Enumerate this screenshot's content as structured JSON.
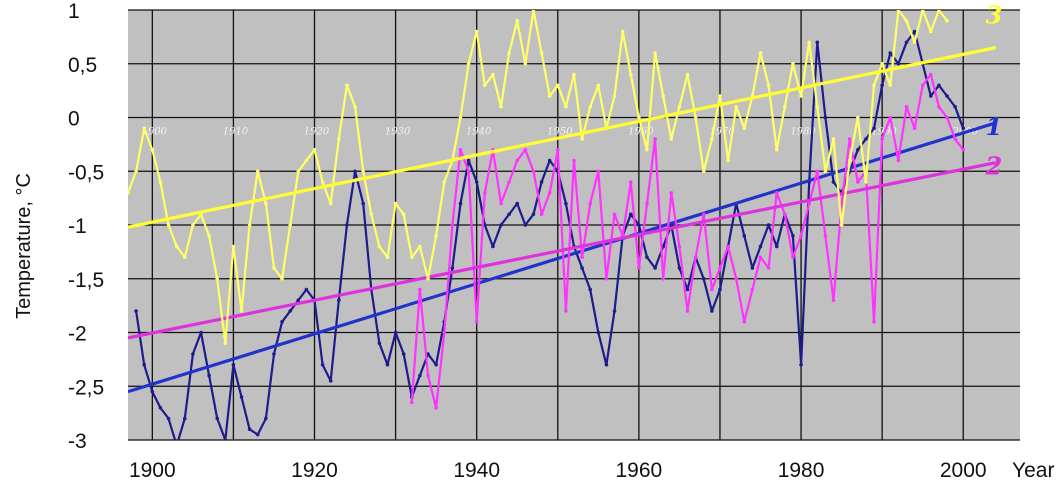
{
  "chart_data": {
    "type": "line",
    "title": "",
    "xlabel": "Year",
    "ylabel": "Temperature, °C",
    "xlim": [
      1897,
      2007
    ],
    "ylim": [
      -3,
      1
    ],
    "x_ticks": [
      "1900",
      "1920",
      "1940",
      "1960",
      "1980",
      "2000"
    ],
    "y_ticks": [
      {
        "value": 1,
        "label": "1"
      },
      {
        "value": 0.5,
        "label": "0,5"
      },
      {
        "value": 0,
        "label": "0"
      },
      {
        "value": -0.5,
        "label": "-0,5"
      },
      {
        "value": -1,
        "label": "-1"
      },
      {
        "value": -1.5,
        "label": "-1,5"
      },
      {
        "value": -2,
        "label": "-2"
      },
      {
        "value": -2.5,
        "label": "-2,5"
      },
      {
        "value": -3,
        "label": "-3"
      }
    ],
    "inner_ticks": [
      "1900",
      "1910",
      "1920",
      "1930",
      "1940",
      "1950",
      "1960",
      "1970",
      "1980",
      "1990",
      "2000"
    ],
    "grid": true,
    "background_color": "#c0c0c0",
    "series": [
      {
        "label": "1",
        "color": "#1c1c8c",
        "trend_color": "#2233cc",
        "trend": [
          [
            1897,
            -2.55
          ],
          [
            2004,
            -0.05
          ]
        ],
        "points": [
          [
            1898,
            -1.8
          ],
          [
            1899,
            -2.3
          ],
          [
            1900,
            -2.55
          ],
          [
            1901,
            -2.7
          ],
          [
            1902,
            -2.8
          ],
          [
            1903,
            -3.05
          ],
          [
            1904,
            -2.8
          ],
          [
            1905,
            -2.2
          ],
          [
            1906,
            -2.0
          ],
          [
            1907,
            -2.4
          ],
          [
            1908,
            -2.8
          ],
          [
            1909,
            -3.0
          ],
          [
            1910,
            -2.3
          ],
          [
            1911,
            -2.6
          ],
          [
            1912,
            -2.9
          ],
          [
            1913,
            -2.95
          ],
          [
            1914,
            -2.8
          ],
          [
            1915,
            -2.2
          ],
          [
            1916,
            -1.9
          ],
          [
            1917,
            -1.8
          ],
          [
            1918,
            -1.7
          ],
          [
            1919,
            -1.6
          ],
          [
            1920,
            -1.7
          ],
          [
            1921,
            -2.3
          ],
          [
            1922,
            -2.45
          ],
          [
            1923,
            -1.7
          ],
          [
            1924,
            -1.0
          ],
          [
            1925,
            -0.5
          ],
          [
            1926,
            -0.8
          ],
          [
            1927,
            -1.6
          ],
          [
            1928,
            -2.1
          ],
          [
            1929,
            -2.3
          ],
          [
            1930,
            -2.0
          ],
          [
            1931,
            -2.2
          ],
          [
            1932,
            -2.6
          ],
          [
            1933,
            -2.4
          ],
          [
            1934,
            -2.2
          ],
          [
            1935,
            -2.3
          ],
          [
            1936,
            -1.9
          ],
          [
            1937,
            -1.4
          ],
          [
            1938,
            -0.8
          ],
          [
            1939,
            -0.4
          ],
          [
            1940,
            -0.6
          ],
          [
            1941,
            -1.0
          ],
          [
            1942,
            -1.2
          ],
          [
            1943,
            -1.0
          ],
          [
            1944,
            -0.9
          ],
          [
            1945,
            -0.8
          ],
          [
            1946,
            -1.0
          ],
          [
            1947,
            -0.9
          ],
          [
            1948,
            -0.6
          ],
          [
            1949,
            -0.4
          ],
          [
            1950,
            -0.5
          ],
          [
            1951,
            -0.8
          ],
          [
            1952,
            -1.2
          ],
          [
            1953,
            -1.4
          ],
          [
            1954,
            -1.6
          ],
          [
            1955,
            -2.0
          ],
          [
            1956,
            -2.3
          ],
          [
            1957,
            -1.8
          ],
          [
            1958,
            -1.1
          ],
          [
            1959,
            -0.9
          ],
          [
            1960,
            -1.0
          ],
          [
            1961,
            -1.3
          ],
          [
            1962,
            -1.4
          ],
          [
            1963,
            -1.2
          ],
          [
            1964,
            -1.0
          ],
          [
            1965,
            -1.4
          ],
          [
            1966,
            -1.6
          ],
          [
            1967,
            -1.3
          ],
          [
            1968,
            -1.5
          ],
          [
            1969,
            -1.8
          ],
          [
            1970,
            -1.6
          ],
          [
            1971,
            -1.2
          ],
          [
            1972,
            -0.8
          ],
          [
            1973,
            -1.1
          ],
          [
            1974,
            -1.4
          ],
          [
            1975,
            -1.2
          ],
          [
            1976,
            -1.0
          ],
          [
            1977,
            -1.2
          ],
          [
            1978,
            -0.9
          ],
          [
            1979,
            -1.1
          ],
          [
            1980,
            -2.3
          ],
          [
            1981,
            -0.6
          ],
          [
            1982,
            0.7
          ],
          [
            1983,
            0.0
          ],
          [
            1984,
            -0.6
          ],
          [
            1985,
            -0.7
          ],
          [
            1986,
            -0.5
          ],
          [
            1987,
            -0.3
          ],
          [
            1988,
            -0.2
          ],
          [
            1989,
            -0.1
          ],
          [
            1990,
            0.3
          ],
          [
            1991,
            0.6
          ],
          [
            1992,
            0.5
          ],
          [
            1993,
            0.7
          ],
          [
            1994,
            0.8
          ],
          [
            1995,
            0.5
          ],
          [
            1996,
            0.2
          ],
          [
            1997,
            0.3
          ],
          [
            1998,
            0.2
          ],
          [
            1999,
            0.1
          ],
          [
            2000,
            -0.1
          ]
        ]
      },
      {
        "label": "2",
        "color": "#ff33ff",
        "trend_color": "#dd33dd",
        "trend": [
          [
            1897,
            -2.05
          ],
          [
            2004,
            -0.42
          ]
        ],
        "points": [
          [
            1932,
            -2.65
          ],
          [
            1933,
            -1.6
          ],
          [
            1934,
            -2.4
          ],
          [
            1935,
            -2.7
          ],
          [
            1936,
            -2.0
          ],
          [
            1937,
            -1.0
          ],
          [
            1938,
            -0.3
          ],
          [
            1939,
            -0.5
          ],
          [
            1940,
            -1.9
          ],
          [
            1941,
            -0.7
          ],
          [
            1942,
            -0.3
          ],
          [
            1943,
            -0.8
          ],
          [
            1944,
            -0.6
          ],
          [
            1945,
            -0.4
          ],
          [
            1946,
            -0.3
          ],
          [
            1947,
            -0.5
          ],
          [
            1948,
            -0.9
          ],
          [
            1949,
            -0.7
          ],
          [
            1950,
            -0.3
          ],
          [
            1951,
            -1.8
          ],
          [
            1952,
            -0.4
          ],
          [
            1953,
            -1.3
          ],
          [
            1954,
            -0.8
          ],
          [
            1955,
            -0.5
          ],
          [
            1956,
            -1.5
          ],
          [
            1957,
            -0.9
          ],
          [
            1958,
            -1.1
          ],
          [
            1959,
            -0.6
          ],
          [
            1960,
            -1.4
          ],
          [
            1961,
            -0.8
          ],
          [
            1962,
            -0.2
          ],
          [
            1963,
            -1.5
          ],
          [
            1964,
            -0.7
          ],
          [
            1965,
            -1.2
          ],
          [
            1966,
            -1.8
          ],
          [
            1967,
            -1.3
          ],
          [
            1968,
            -0.9
          ],
          [
            1969,
            -1.6
          ],
          [
            1970,
            -1.4
          ],
          [
            1971,
            -1.2
          ],
          [
            1972,
            -1.5
          ],
          [
            1973,
            -1.9
          ],
          [
            1974,
            -1.6
          ],
          [
            1975,
            -1.3
          ],
          [
            1976,
            -1.4
          ],
          [
            1977,
            -0.7
          ],
          [
            1978,
            -0.9
          ],
          [
            1979,
            -1.3
          ],
          [
            1980,
            -1.1
          ],
          [
            1981,
            -0.8
          ],
          [
            1982,
            -0.5
          ],
          [
            1983,
            -1.1
          ],
          [
            1984,
            -1.7
          ],
          [
            1985,
            -0.8
          ],
          [
            1986,
            -0.2
          ],
          [
            1987,
            -0.6
          ],
          [
            1988,
            -0.5
          ],
          [
            1989,
            -1.9
          ],
          [
            1990,
            -0.2
          ],
          [
            1991,
            0.0
          ],
          [
            1992,
            -0.4
          ],
          [
            1993,
            0.1
          ],
          [
            1994,
            -0.1
          ],
          [
            1995,
            0.3
          ],
          [
            1996,
            0.4
          ],
          [
            1997,
            0.1
          ],
          [
            1998,
            0.0
          ],
          [
            1999,
            -0.2
          ],
          [
            2000,
            -0.3
          ]
        ]
      },
      {
        "label": "3",
        "color": "#ffff66",
        "trend_color": "#ffff33",
        "trend": [
          [
            1897,
            -1.02
          ],
          [
            2004,
            0.65
          ]
        ],
        "points": [
          [
            1897,
            -0.7
          ],
          [
            1898,
            -0.5
          ],
          [
            1899,
            -0.1
          ],
          [
            1900,
            -0.3
          ],
          [
            1901,
            -0.6
          ],
          [
            1902,
            -1.0
          ],
          [
            1903,
            -1.2
          ],
          [
            1904,
            -1.3
          ],
          [
            1905,
            -1.0
          ],
          [
            1906,
            -0.9
          ],
          [
            1907,
            -1.1
          ],
          [
            1908,
            -1.5
          ],
          [
            1909,
            -2.1
          ],
          [
            1910,
            -1.2
          ],
          [
            1911,
            -1.8
          ],
          [
            1912,
            -1.0
          ],
          [
            1913,
            -0.5
          ],
          [
            1914,
            -0.8
          ],
          [
            1915,
            -1.4
          ],
          [
            1916,
            -1.5
          ],
          [
            1917,
            -1.0
          ],
          [
            1918,
            -0.5
          ],
          [
            1919,
            -0.4
          ],
          [
            1920,
            -0.3
          ],
          [
            1921,
            -0.6
          ],
          [
            1922,
            -0.8
          ],
          [
            1923,
            -0.2
          ],
          [
            1924,
            0.3
          ],
          [
            1925,
            0.1
          ],
          [
            1926,
            -0.5
          ],
          [
            1927,
            -0.9
          ],
          [
            1928,
            -1.2
          ],
          [
            1929,
            -1.3
          ],
          [
            1930,
            -0.8
          ],
          [
            1931,
            -0.9
          ],
          [
            1932,
            -1.3
          ],
          [
            1933,
            -1.2
          ],
          [
            1934,
            -1.5
          ],
          [
            1935,
            -1.1
          ],
          [
            1936,
            -0.6
          ],
          [
            1937,
            -0.4
          ],
          [
            1938,
            0.0
          ],
          [
            1939,
            0.5
          ],
          [
            1940,
            0.8
          ],
          [
            1941,
            0.3
          ],
          [
            1942,
            0.4
          ],
          [
            1943,
            0.1
          ],
          [
            1944,
            0.6
          ],
          [
            1945,
            0.9
          ],
          [
            1946,
            0.5
          ],
          [
            1947,
            1.0
          ],
          [
            1948,
            0.6
          ],
          [
            1949,
            0.2
          ],
          [
            1950,
            0.3
          ],
          [
            1951,
            0.1
          ],
          [
            1952,
            0.4
          ],
          [
            1953,
            -0.2
          ],
          [
            1954,
            0.1
          ],
          [
            1955,
            0.3
          ],
          [
            1956,
            -0.1
          ],
          [
            1957,
            0.2
          ],
          [
            1958,
            0.8
          ],
          [
            1959,
            0.4
          ],
          [
            1960,
            0.0
          ],
          [
            1961,
            -0.3
          ],
          [
            1962,
            0.6
          ],
          [
            1963,
            0.2
          ],
          [
            1964,
            -0.2
          ],
          [
            1965,
            0.1
          ],
          [
            1966,
            0.4
          ],
          [
            1967,
            0.0
          ],
          [
            1968,
            -0.5
          ],
          [
            1969,
            -0.2
          ],
          [
            1970,
            0.2
          ],
          [
            1971,
            -0.4
          ],
          [
            1972,
            0.1
          ],
          [
            1973,
            -0.1
          ],
          [
            1974,
            0.2
          ],
          [
            1975,
            0.6
          ],
          [
            1976,
            0.3
          ],
          [
            1977,
            -0.3
          ],
          [
            1978,
            0.1
          ],
          [
            1979,
            0.5
          ],
          [
            1980,
            0.2
          ],
          [
            1981,
            0.7
          ],
          [
            1982,
            0.1
          ],
          [
            1983,
            -0.5
          ],
          [
            1984,
            -0.2
          ],
          [
            1985,
            -1.0
          ],
          [
            1986,
            -0.4
          ],
          [
            1987,
            0.0
          ],
          [
            1988,
            -0.6
          ],
          [
            1989,
            0.3
          ],
          [
            1990,
            0.5
          ],
          [
            1991,
            0.3
          ],
          [
            1992,
            1.0
          ],
          [
            1993,
            0.9
          ],
          [
            1994,
            0.7
          ],
          [
            1995,
            1.0
          ],
          [
            1996,
            0.8
          ],
          [
            1997,
            1.0
          ],
          [
            1998,
            0.9
          ]
        ]
      }
    ]
  }
}
